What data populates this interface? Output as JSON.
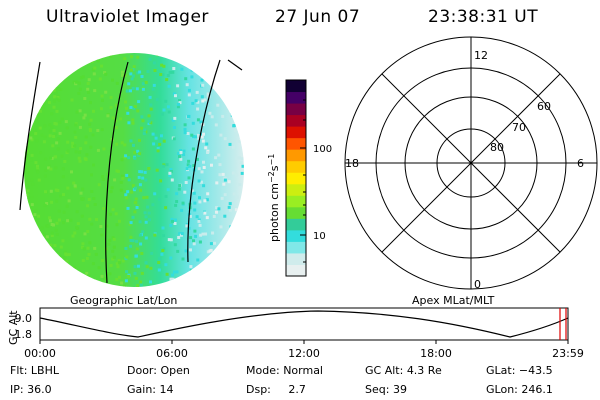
{
  "header": {
    "instrument": "Ultraviolet Imager",
    "date": "27 Jun 07",
    "time": "23:38:31 UT"
  },
  "left_panel": {
    "label": "Geographic Lat/Lon",
    "disk_colors": [
      "#55dd33",
      "#66e033",
      "#77e044",
      "#33d9a0",
      "#33dddd",
      "#c9ecec",
      "#e4f0f0"
    ]
  },
  "colorbar": {
    "unit_text": "photon cm",
    "unit_sup1": "−2",
    "unit_s": "s",
    "unit_sup2": "−1",
    "tick_labels": [
      "100",
      "10"
    ],
    "colors": [
      "#e8f0f0",
      "#d0ecec",
      "#80e8e8",
      "#33dddd",
      "#33cc99",
      "#66dd33",
      "#99ee22",
      "#ccee11",
      "#ffee00",
      "#ffcc00",
      "#ff9900",
      "#ff5500",
      "#dd1100",
      "#aa0022",
      "#770044",
      "#440066",
      "#110033"
    ]
  },
  "polar_panel": {
    "label": "Apex MLat/MLT",
    "mlt_labels": {
      "top": "12",
      "bottom": "0",
      "left": "18",
      "right": "6"
    },
    "lat_labels": [
      "60",
      "70",
      "80"
    ]
  },
  "timeline": {
    "axis_label": "GC Alt",
    "y_ticks": [
      "9.0",
      "1.8"
    ],
    "x_ticks": [
      "00:00",
      "06:00",
      "12:00",
      "18:00",
      "23:59"
    ],
    "marker_color": "#dd0000"
  },
  "info": {
    "flt_label": "Flt:",
    "flt_value": "LBHL",
    "ip_label": "IP:",
    "ip_value": "36.0",
    "door_label": "Door:",
    "door_value": "Open",
    "gain_label": "Gain:",
    "gain_value": "14",
    "mode_label": "Mode:",
    "mode_value": "Normal",
    "dsp_label": "Dsp:",
    "dsp_value": "2.7",
    "gcalt_label": "GC Alt:",
    "gcalt_value": "4.3 Re",
    "seq_label": "Seq:",
    "seq_value": "39",
    "glat_label": "GLat:",
    "glat_value": "−43.5",
    "glon_label": "GLon:",
    "glon_value": "246.1"
  }
}
